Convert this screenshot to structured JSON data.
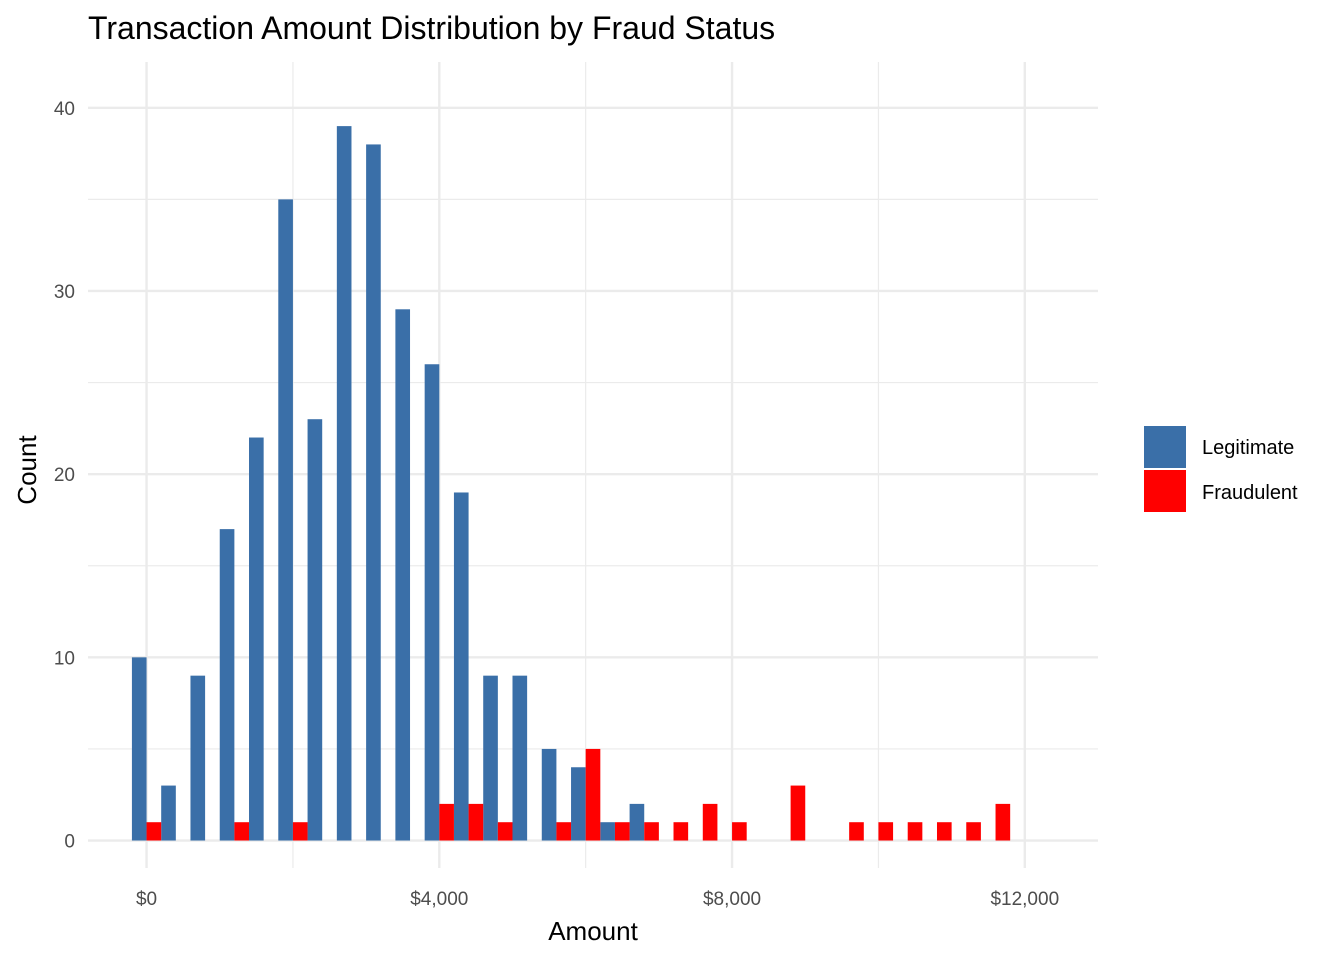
{
  "chart_data": {
    "type": "bar",
    "title": "Transaction Amount Distribution by Fraud Status",
    "xlabel": "Amount",
    "ylabel": "Count",
    "bin_width": 400,
    "x": [
      0,
      400,
      800,
      1200,
      1600,
      2000,
      2400,
      2800,
      3200,
      3600,
      4000,
      4400,
      4800,
      5200,
      5600,
      6000,
      6400,
      6800,
      7200,
      7600,
      8000,
      8400,
      8800,
      9200,
      9600,
      10000,
      10400,
      10800,
      11200,
      11600,
      12000
    ],
    "series": [
      {
        "name": "Legitimate",
        "color": "#3a6fa8",
        "values": [
          10,
          3,
          9,
          17,
          22,
          35,
          23,
          39,
          38,
          29,
          26,
          19,
          9,
          9,
          5,
          4,
          1,
          2,
          0,
          0,
          0,
          0,
          0,
          0,
          0,
          0,
          0,
          0,
          0,
          0,
          0
        ]
      },
      {
        "name": "Fraudulent",
        "color": "#ff0000",
        "values": [
          1,
          0,
          0,
          1,
          0,
          1,
          0,
          0,
          0,
          0,
          2,
          2,
          1,
          0,
          1,
          5,
          1,
          1,
          1,
          2,
          1,
          0,
          3,
          0,
          1,
          1,
          1,
          1,
          1,
          2,
          0
        ]
      }
    ],
    "xlim": [
      -800,
      13000
    ],
    "ylim": [
      -1.5,
      42.5
    ],
    "x_ticks": [
      0,
      4000,
      8000,
      12000
    ],
    "x_tick_labels": [
      "$0",
      "$4,000",
      "$8,000",
      "$12,000"
    ],
    "y_ticks": [
      0,
      10,
      20,
      30,
      40
    ],
    "y_tick_labels": [
      "0",
      "10",
      "20",
      "30",
      "40"
    ],
    "grid": true,
    "legend_position": "right"
  }
}
